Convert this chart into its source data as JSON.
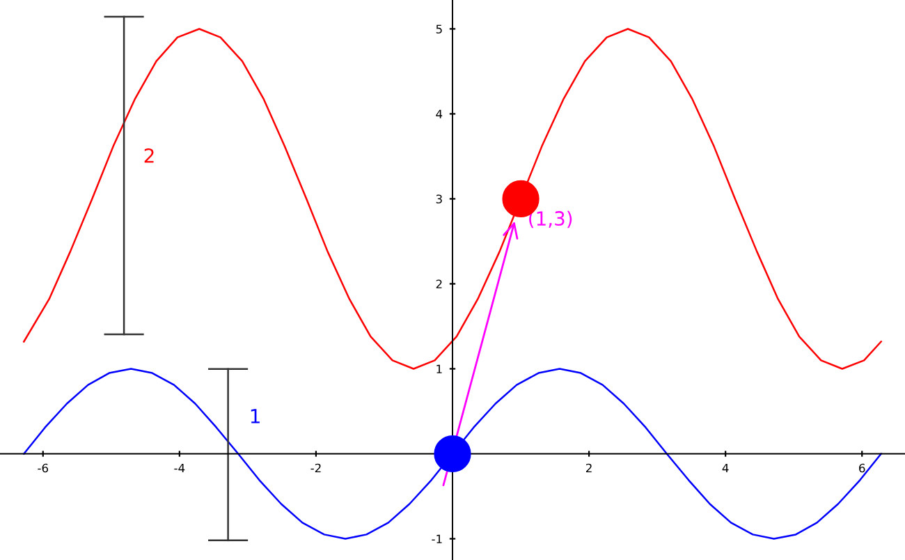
{
  "chart_data": {
    "type": "line",
    "xlim": [
      -6.63,
      6.63
    ],
    "ylim": [
      -1.25,
      5.34
    ],
    "xticks": [
      -6,
      -4,
      -2,
      2,
      4,
      6
    ],
    "yticks": [
      -1,
      1,
      2,
      3,
      4,
      5
    ],
    "grid": false,
    "legend": false,
    "series": [
      {
        "color": "#0000ff",
        "x": [
          -6.28,
          -5.97,
          -5.65,
          -5.34,
          -5.03,
          -4.71,
          -4.4,
          -4.08,
          -3.77,
          -3.46,
          -3.14,
          -2.83,
          -2.51,
          -2.2,
          -1.88,
          -1.57,
          -1.26,
          -0.94,
          -0.63,
          -0.31,
          0,
          0.31,
          0.63,
          0.94,
          1.26,
          1.57,
          1.88,
          2.2,
          2.51,
          2.83,
          3.14,
          3.46,
          3.77,
          4.08,
          4.4,
          4.71,
          5.03,
          5.34,
          5.65,
          5.97,
          6.28
        ],
        "values": [
          0,
          0.31,
          0.59,
          0.81,
          0.95,
          1,
          0.95,
          0.81,
          0.59,
          0.31,
          0,
          -0.31,
          -0.59,
          -0.81,
          -0.95,
          -1,
          -0.95,
          -0.81,
          -0.59,
          -0.31,
          0,
          0.31,
          0.59,
          0.81,
          0.95,
          1,
          0.95,
          0.81,
          0.59,
          0.31,
          0,
          -0.31,
          -0.59,
          -0.81,
          -0.95,
          -1,
          -0.95,
          -0.81,
          -0.59,
          -0.31,
          0
        ]
      },
      {
        "color": "#ff0000",
        "x": [
          -6.28,
          -5.91,
          -5.6,
          -5.28,
          -4.97,
          -4.65,
          -4.34,
          -4.03,
          -3.71,
          -3.4,
          -3.08,
          -2.77,
          -2.46,
          -2.14,
          -1.83,
          -1.51,
          -1.2,
          -0.88,
          -0.57,
          -0.26,
          0.06,
          0.37,
          0.69,
          1,
          1.31,
          1.63,
          1.94,
          2.26,
          2.57,
          2.88,
          3.2,
          3.51,
          3.83,
          4.14,
          4.46,
          4.77,
          5.08,
          5.4,
          5.71,
          6.03,
          6.28
        ],
        "values": [
          1.32,
          1.82,
          2.38,
          3,
          3.62,
          4.18,
          4.62,
          4.9,
          5,
          4.9,
          4.62,
          4.18,
          3.62,
          3,
          2.38,
          1.82,
          1.38,
          1.1,
          1,
          1.1,
          1.38,
          1.82,
          2.38,
          3,
          3.62,
          4.18,
          4.62,
          4.9,
          5,
          4.9,
          4.62,
          4.18,
          3.62,
          3,
          2.38,
          1.82,
          1.38,
          1.1,
          1,
          1.1,
          1.32
        ]
      },
      {
        "type": "scatter",
        "marker": "circle",
        "color": "#0000ff",
        "x": [
          0
        ],
        "values": [
          0
        ]
      },
      {
        "type": "scatter",
        "marker": "circle",
        "color": "#ff0000",
        "x": [
          1
        ],
        "values": [
          3
        ]
      }
    ],
    "annotations": [
      "1",
      "2",
      {
        "text": "(1,3)",
        "x": 1,
        "y": 3
      }
    ]
  }
}
